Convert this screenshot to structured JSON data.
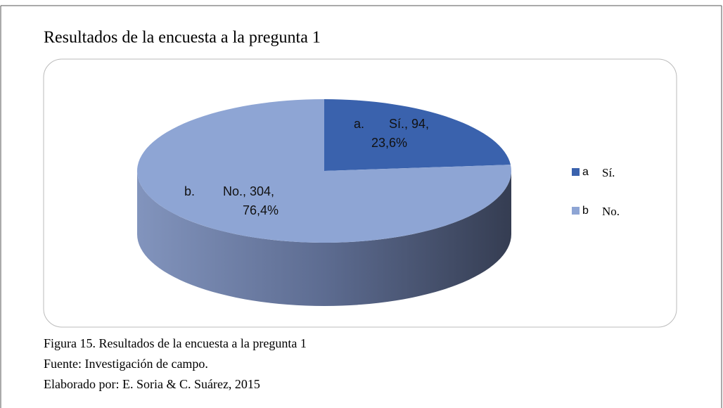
{
  "chart_data": {
    "type": "pie",
    "title": "Resultados de la encuesta a la pregunta 1",
    "legend_keys": [
      "a",
      "b"
    ],
    "categories": [
      "Sí.",
      "No."
    ],
    "values": [
      94,
      304
    ],
    "value_labels": [
      [
        "a.",
        "Sí., 94,",
        "23,6%"
      ],
      [
        "b.",
        "No., 304,",
        "76,4%"
      ]
    ],
    "colors": [
      "#3a62ad",
      "#8ea5d4"
    ],
    "legend": "right",
    "figure_caption": "Figura 15. Resultados de la encuesta a la pregunta 1",
    "source": "Fuente: Investigación de campo.",
    "author": "Elaborado por: E. Soria & C. Suárez, 2015"
  }
}
